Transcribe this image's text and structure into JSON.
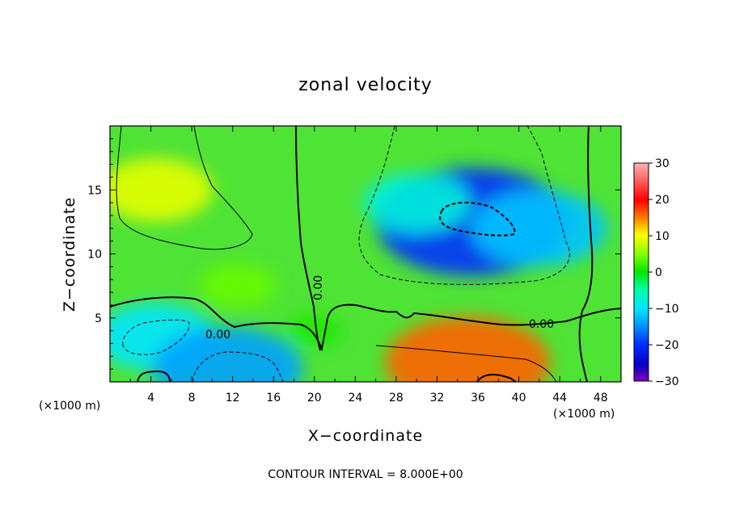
{
  "chart_data": {
    "type": "heatmap",
    "title": "zonal velocity",
    "xlabel": "X−coordinate",
    "ylabel": "Z−coordinate",
    "x_unit_left": "(×1000 m)",
    "x_unit_right": "(×1000 m)",
    "xlim": [
      0,
      50
    ],
    "ylim": [
      0,
      20
    ],
    "x_ticks": [
      4,
      8,
      12,
      16,
      20,
      24,
      28,
      32,
      36,
      40,
      44,
      48
    ],
    "x_tick_labels": [
      "4",
      "8",
      "12",
      "16",
      "20",
      "24",
      "28",
      "32",
      "36",
      "40",
      "44",
      "48"
    ],
    "y_ticks": [
      5,
      10,
      15
    ],
    "y_tick_labels": [
      "5",
      "10",
      "15"
    ],
    "colorbar": {
      "min": -30,
      "max": 30,
      "ticks": [
        30,
        20,
        10,
        0,
        -10,
        -20,
        -30
      ],
      "tick_labels": [
        "30",
        "20",
        "10",
        "0",
        "−10",
        "−20",
        "−30"
      ]
    },
    "contour_interval_text": "CONTOUR INTERVAL = 8.000E+00",
    "contour_labels": [
      "0.00",
      "0.00",
      "0.00"
    ],
    "features": [
      {
        "x": 35.5,
        "z": 12.5,
        "value": -20
      },
      {
        "x": 42.0,
        "z": 12.0,
        "value": -12
      },
      {
        "x": 30.0,
        "z": 14.0,
        "value": -8
      },
      {
        "x": 4.5,
        "z": 15.0,
        "value": 9
      },
      {
        "x": 35.0,
        "z": 1.5,
        "value": 16
      },
      {
        "x": 4.5,
        "z": 3.5,
        "value": -10
      },
      {
        "x": 11.5,
        "z": 1.0,
        "value": -14
      },
      {
        "x": 12.5,
        "z": 7.5,
        "value": 4
      },
      {
        "x": 20.0,
        "z": 4.0,
        "value": 1
      }
    ],
    "grid": false,
    "colorbar_position": "right"
  }
}
